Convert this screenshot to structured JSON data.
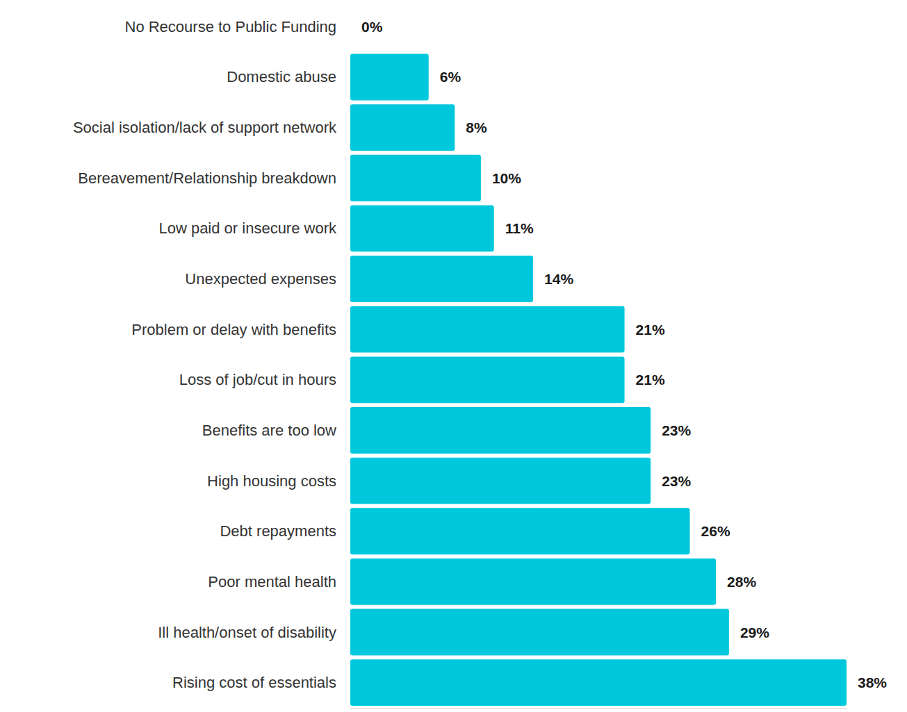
{
  "chart_data": {
    "type": "bar",
    "orientation": "horizontal",
    "categories": [
      "No Recourse to Public Funding",
      "Domestic abuse",
      "Social isolation/lack of support network",
      "Bereavement/Relationship breakdown",
      "Low paid or insecure work",
      "Unexpected expenses",
      "Problem or delay with benefits",
      "Loss of job/cut in hours",
      "Benefits are too low",
      "High housing costs",
      "Debt repayments",
      "Poor mental health",
      "Ill health/onset of disability",
      "Rising cost of essentials"
    ],
    "values": [
      0,
      6,
      8,
      10,
      11,
      14,
      21,
      21,
      23,
      23,
      26,
      28,
      29,
      38
    ],
    "value_labels": [
      "0%",
      "6%",
      "8%",
      "10%",
      "11%",
      "14%",
      "21%",
      "21%",
      "23%",
      "23%",
      "26%",
      "28%",
      "29%",
      "38%"
    ],
    "color": "#00c8dc",
    "xlim": [
      0,
      38
    ],
    "data_labels": true,
    "tick_labels": "y",
    "grid": false
  }
}
